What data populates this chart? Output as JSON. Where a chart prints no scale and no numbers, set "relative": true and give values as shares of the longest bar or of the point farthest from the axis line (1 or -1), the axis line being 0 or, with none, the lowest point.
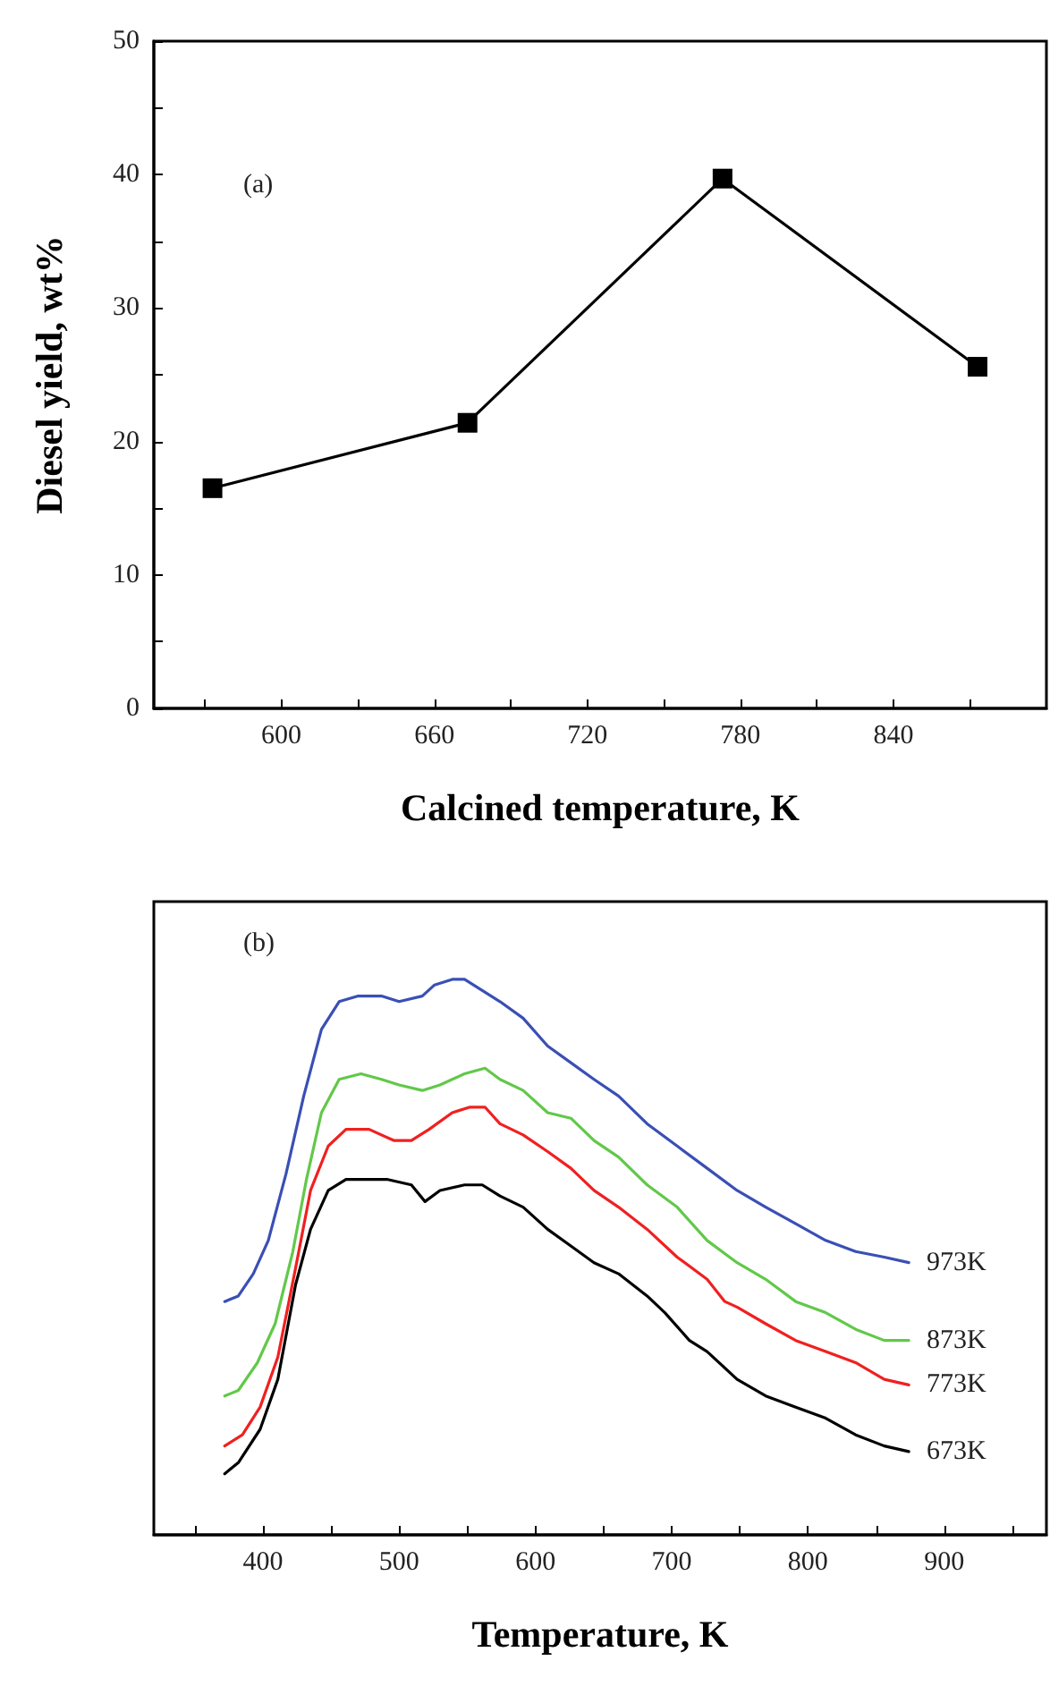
{
  "chart_data": [
    {
      "type": "line",
      "xlabel": "Calcined temperature, K",
      "ylabel": "Diesel yield, wt%",
      "annotations": [
        "(a)"
      ],
      "x": [
        573,
        673,
        773,
        873
      ],
      "series": [
        {
          "color": "#000000",
          "values": [
            16.5,
            21.4,
            39.7,
            25.6
          ]
        }
      ],
      "xlim": [
        550,
        900
      ],
      "xticks": [
        {
          "value": 570,
          "label": null
        },
        600,
        {
          "value": 630,
          "label": null
        },
        660,
        {
          "value": 690,
          "label": null
        },
        720,
        {
          "value": 750,
          "label": null
        },
        780,
        {
          "value": 810,
          "label": null
        },
        840,
        {
          "value": 870,
          "label": null
        }
      ],
      "ylim": [
        0,
        50
      ],
      "yticks": [
        0,
        {
          "value": 5,
          "label": null
        },
        10,
        {
          "value": 15,
          "label": null
        },
        20,
        {
          "value": 25,
          "label": null
        },
        30,
        {
          "value": 35,
          "label": null
        },
        40,
        {
          "value": 45,
          "label": null
        },
        50
      ],
      "marker": "square",
      "line_style": "solid",
      "grid": false,
      "legend": false
    },
    {
      "type": "line",
      "relative": true,
      "xlabel": "Temperature, K",
      "annotations": [
        "(b)"
      ],
      "xlim": [
        320,
        975
      ],
      "xticks": [
        {
          "value": 350,
          "label": null
        },
        400,
        {
          "value": 450,
          "label": null
        },
        500,
        {
          "value": 550,
          "label": null
        },
        600,
        {
          "value": 650,
          "label": null
        },
        700,
        {
          "value": 750,
          "label": null
        },
        800,
        {
          "value": 850,
          "label": null
        },
        900,
        {
          "value": 950,
          "label": null
        }
      ],
      "tick_labels": "x",
      "marker": "none",
      "line_style": "solid",
      "grid": false,
      "legend": false,
      "series": [
        {
          "name": "973K",
          "color": "#3a4fb5",
          "x": [
            372,
            382,
            393,
            404,
            417,
            430,
            443,
            456,
            470,
            487,
            500,
            517,
            526,
            539,
            548,
            561,
            574,
            591,
            609,
            626,
            643,
            661,
            682,
            704,
            726,
            748,
            769,
            791,
            813,
            835,
            856,
            874
          ],
          "values": [
            0.42,
            0.43,
            0.47,
            0.53,
            0.65,
            0.79,
            0.91,
            0.96,
            0.97,
            0.97,
            0.96,
            0.97,
            0.99,
            1.0,
            1.0,
            0.98,
            0.96,
            0.93,
            0.88,
            0.85,
            0.82,
            0.79,
            0.74,
            0.7,
            0.66,
            0.62,
            0.59,
            0.56,
            0.53,
            0.51,
            0.5,
            0.49
          ]
        },
        {
          "name": "873K",
          "color": "#62c84a",
          "x": [
            372,
            382,
            396,
            409,
            422,
            432,
            443,
            456,
            472,
            487,
            500,
            517,
            530,
            548,
            563,
            574,
            591,
            609,
            626,
            643,
            661,
            682,
            704,
            726,
            748,
            769,
            791,
            813,
            835,
            856,
            874
          ],
          "values": [
            0.25,
            0.26,
            0.31,
            0.38,
            0.51,
            0.64,
            0.76,
            0.82,
            0.83,
            0.82,
            0.81,
            0.8,
            0.81,
            0.83,
            0.84,
            0.82,
            0.8,
            0.76,
            0.75,
            0.71,
            0.68,
            0.63,
            0.59,
            0.53,
            0.49,
            0.46,
            0.42,
            0.4,
            0.37,
            0.35,
            0.35
          ]
        },
        {
          "name": "773K",
          "color": "#f02020",
          "x": [
            372,
            385,
            398,
            411,
            424,
            435,
            448,
            461,
            478,
            496,
            509,
            522,
            539,
            552,
            563,
            574,
            591,
            609,
            626,
            643,
            661,
            682,
            704,
            726,
            739,
            748,
            769,
            791,
            813,
            835,
            856,
            874
          ],
          "values": [
            0.16,
            0.18,
            0.23,
            0.32,
            0.48,
            0.62,
            0.7,
            0.73,
            0.73,
            0.71,
            0.71,
            0.73,
            0.76,
            0.77,
            0.77,
            0.74,
            0.72,
            0.69,
            0.66,
            0.62,
            0.59,
            0.55,
            0.5,
            0.46,
            0.42,
            0.41,
            0.38,
            0.35,
            0.33,
            0.31,
            0.28,
            0.27
          ]
        },
        {
          "name": "673K",
          "color": "#000000",
          "x": [
            372,
            382,
            398,
            411,
            424,
            435,
            448,
            461,
            474,
            491,
            509,
            519,
            530,
            548,
            561,
            574,
            591,
            609,
            626,
            643,
            661,
            682,
            695,
            713,
            726,
            748,
            769,
            791,
            813,
            835,
            856,
            874
          ],
          "values": [
            0.11,
            0.13,
            0.19,
            0.28,
            0.45,
            0.55,
            0.62,
            0.64,
            0.64,
            0.64,
            0.63,
            0.6,
            0.62,
            0.63,
            0.63,
            0.61,
            0.59,
            0.55,
            0.52,
            0.49,
            0.47,
            0.43,
            0.4,
            0.35,
            0.33,
            0.28,
            0.25,
            0.23,
            0.21,
            0.18,
            0.16,
            0.15
          ]
        }
      ]
    }
  ]
}
